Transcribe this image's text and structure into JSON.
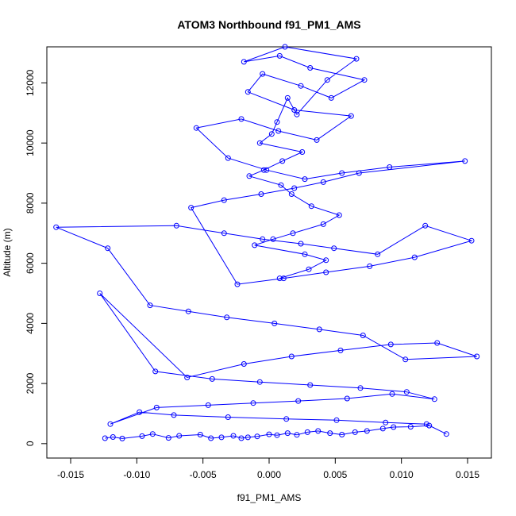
{
  "chart_data": {
    "type": "line",
    "title": "ATOM3 Northbound f91_PM1_AMS",
    "xlabel": "f91_PM1_AMS",
    "ylabel": "Altitude (m)",
    "xlim": [
      -0.0168,
      0.0168
    ],
    "ylim": [
      -480,
      13200
    ],
    "x_ticks": [
      -0.015,
      -0.01,
      -0.005,
      0.0,
      0.005,
      0.01,
      0.015
    ],
    "x_tick_labels": [
      "-0.015",
      "-0.010",
      "-0.005",
      "0.000",
      "0.005",
      "0.010",
      "0.015"
    ],
    "y_ticks": [
      0,
      2000,
      4000,
      6000,
      8000,
      10000,
      12000
    ],
    "y_tick_labels": [
      "0",
      "2000",
      "4000",
      "6000",
      "8000",
      "10000",
      "12000"
    ],
    "grid": false,
    "legend": "none",
    "series_color": "#0000ff",
    "marker": "open-circle",
    "x": [
      -0.0124,
      -0.0118,
      -0.0111,
      -0.0096,
      -0.0088,
      -0.0076,
      -0.0068,
      -0.0052,
      -0.0044,
      -0.0036,
      -0.0027,
      -0.0021,
      -0.0016,
      -0.0009,
      0.0,
      0.0006,
      0.0014,
      0.0021,
      0.0029,
      0.0037,
      0.0046,
      0.0055,
      0.0065,
      0.0074,
      0.0086,
      0.0094,
      0.0107,
      0.0121,
      0.0134,
      0.0119,
      0.0088,
      0.0051,
      0.0013,
      -0.0031,
      -0.0072,
      -0.0098,
      -0.012,
      -0.0085,
      -0.0046,
      -0.0012,
      0.0022,
      0.0059,
      0.0093,
      0.0125,
      0.0104,
      0.0069,
      0.0031,
      -0.0007,
      -0.0043,
      -0.0086,
      -0.0128,
      -0.0062,
      -0.0019,
      0.0017,
      0.0054,
      0.0092,
      0.0127,
      0.0157,
      0.0103,
      0.0071,
      0.0038,
      0.0004,
      -0.0032,
      -0.0061,
      -0.009,
      -0.0122,
      -0.0161,
      -0.007,
      -0.0034,
      -0.0005,
      0.0024,
      0.0049,
      0.0082,
      0.0118,
      0.0153,
      0.011,
      0.0076,
      0.0043,
      0.0011,
      -0.0024,
      -0.0059,
      -0.0034,
      -0.0006,
      0.0019,
      0.0041,
      0.0068,
      0.0148,
      0.0091,
      0.0055,
      0.0027,
      -0.0002,
      -0.0031,
      -0.0055,
      -0.0021,
      0.0007,
      0.0036,
      0.0062,
      0.0019,
      -0.0016,
      -0.0005,
      0.0024,
      0.0047,
      0.0072,
      0.0031,
      0.0008,
      -0.0019,
      0.0012,
      0.0066,
      0.0044,
      0.0021,
      0.0014,
      0.0006,
      0.0002,
      -0.0007,
      0.0025,
      0.001,
      -0.0004,
      -0.0015,
      0.0009,
      0.0017,
      0.0032,
      0.0053,
      0.0041,
      0.0018,
      0.0003,
      -0.0011,
      0.0027,
      0.0043,
      0.003,
      0.0008
    ],
    "y": [
      180,
      220,
      170,
      250,
      320,
      190,
      260,
      300,
      180,
      210,
      260,
      180,
      210,
      240,
      310,
      280,
      350,
      290,
      380,
      420,
      350,
      300,
      380,
      420,
      500,
      550,
      560,
      600,
      320,
      650,
      700,
      780,
      820,
      880,
      950,
      1050,
      650,
      1200,
      1280,
      1350,
      1420,
      1500,
      1650,
      1480,
      1720,
      1850,
      1950,
      2050,
      2150,
      2400,
      5000,
      2200,
      2650,
      2900,
      3100,
      3300,
      3350,
      2900,
      2800,
      3600,
      3800,
      4000,
      4200,
      4400,
      4600,
      6500,
      7200,
      7250,
      7000,
      6800,
      6650,
      6500,
      6300,
      7250,
      6750,
      6200,
      5900,
      5700,
      5500,
      5300,
      7850,
      8100,
      8300,
      8500,
      8700,
      9000,
      9400,
      9200,
      9000,
      8800,
      9100,
      9500,
      10500,
      10800,
      10400,
      10100,
      10900,
      11100,
      11700,
      12300,
      11900,
      11500,
      12100,
      12500,
      12900,
      12700,
      13200,
      12800,
      12100,
      10950,
      11500,
      10700,
      10300,
      10000,
      9700,
      9400,
      9100,
      8900,
      8600,
      8300,
      7900,
      7600,
      7300,
      7000,
      6800,
      6600,
      6300,
      6100,
      5800,
      5500
    ]
  }
}
